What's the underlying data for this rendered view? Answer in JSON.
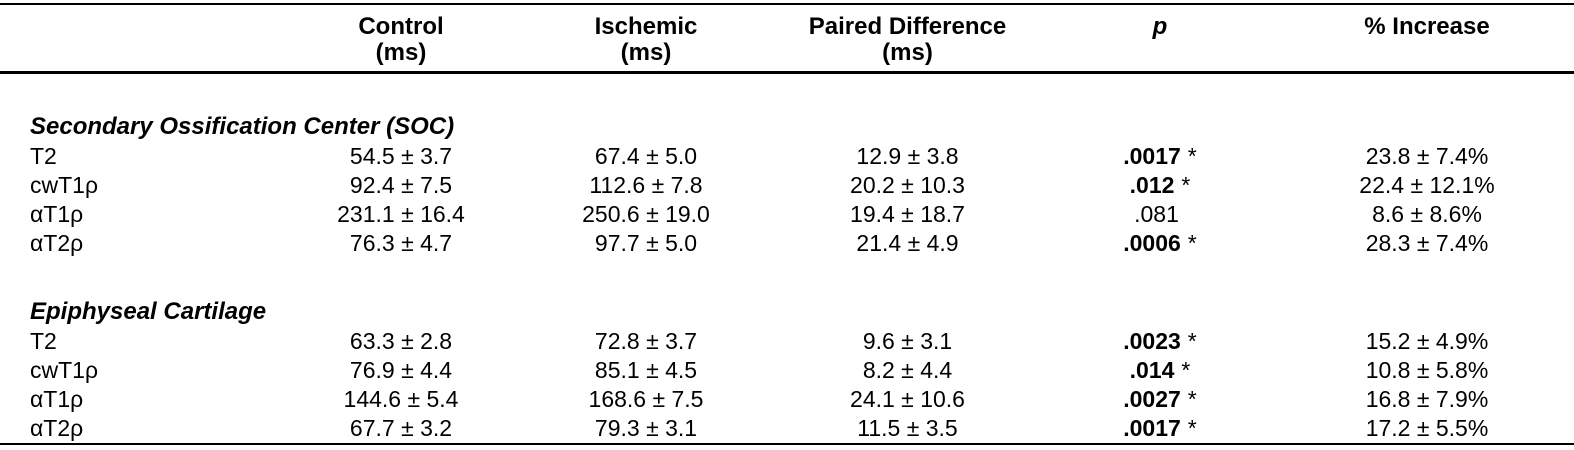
{
  "table": {
    "columns": {
      "label": {
        "line1": "",
        "line2": ""
      },
      "control": {
        "line1": "Control",
        "line2": "(ms)"
      },
      "ischemic": {
        "line1": "Ischemic",
        "line2": "(ms)"
      },
      "paired": {
        "line1": "Paired Difference",
        "line2": "(ms)"
      },
      "p": {
        "line1": "p",
        "line2": ""
      },
      "increase": {
        "line1": "% Increase",
        "line2": ""
      }
    },
    "significance_marker": "*",
    "text_color": "#000000",
    "background_color": "#ffffff",
    "sections": [
      {
        "title": "Secondary Ossification Center (SOC)",
        "rows": [
          {
            "label": "T2",
            "control": "54.5 ± 3.7",
            "ischemic": "67.4 ± 5.0",
            "paired": "12.9 ± 3.8",
            "p": ".0017",
            "p_star": "*",
            "increase": "23.8 ± 7.4%"
          },
          {
            "label": "cwT1ρ",
            "control": "92.4 ± 7.5",
            "ischemic": "112.6 ± 7.8",
            "paired": "20.2 ± 10.3",
            "p": ".012",
            "p_star": "*",
            "increase": "22.4 ± 12.1%"
          },
          {
            "label": "αT1ρ",
            "control": "231.1 ± 16.4",
            "ischemic": "250.6 ± 19.0",
            "paired": "19.4 ± 18.7",
            "p": ".081",
            "p_star": "",
            "increase": "8.6 ± 8.6%"
          },
          {
            "label": "αT2ρ",
            "control": "76.3 ± 4.7",
            "ischemic": "97.7 ± 5.0",
            "paired": "21.4 ± 4.9",
            "p": ".0006",
            "p_star": "*",
            "increase": "28.3 ± 7.4%"
          }
        ]
      },
      {
        "title": "Epiphyseal Cartilage",
        "rows": [
          {
            "label": "T2",
            "control": "63.3 ± 2.8",
            "ischemic": "72.8 ± 3.7",
            "paired": "9.6 ± 3.1",
            "p": ".0023",
            "p_star": "*",
            "increase": "15.2 ± 4.9%"
          },
          {
            "label": "cwT1ρ",
            "control": "76.9 ± 4.4",
            "ischemic": "85.1 ± 4.5",
            "paired": "8.2 ± 4.4",
            "p": ".014",
            "p_star": "*",
            "increase": "10.8 ± 5.8%"
          },
          {
            "label": "αT1ρ",
            "control": "144.6 ± 5.4",
            "ischemic": "168.6 ± 7.5",
            "paired": "24.1 ± 10.6",
            "p": ".0027",
            "p_star": "*",
            "increase": "16.8 ± 7.9%"
          },
          {
            "label": "αT2ρ",
            "control": "67.7 ± 3.2",
            "ischemic": "79.3 ± 3.1",
            "paired": "11.5 ± 3.5",
            "p": ".0017",
            "p_star": "*",
            "increase": "17.2 ± 5.5%"
          }
        ]
      }
    ]
  }
}
